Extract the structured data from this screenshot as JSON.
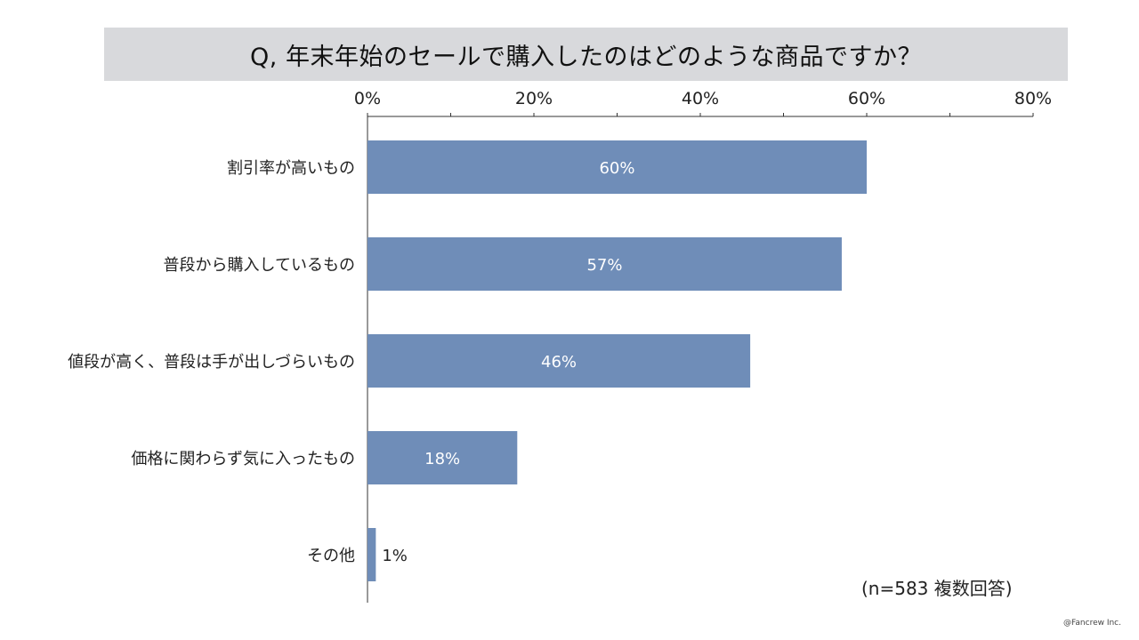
{
  "title": "Q, 年末年始のセールで購入したのはどのような商品ですか？",
  "note": "(n=583 複数回答)",
  "credit": "@Fancrew Inc.",
  "colors": {
    "bar": "#6f8db8",
    "title_bg": "#d8d9dc",
    "axis": "#333333"
  },
  "chart_data": {
    "type": "bar",
    "orientation": "horizontal",
    "categories": [
      "割引率が高いもの",
      "普段から購入しているもの",
      "値段が高く、普段は手が出しづらいもの",
      "価格に関わらず気に入ったもの",
      "その他"
    ],
    "values": [
      60,
      57,
      46,
      18,
      1
    ],
    "value_labels": [
      "60%",
      "57%",
      "46%",
      "18%",
      "1%"
    ],
    "xlim": [
      0,
      80
    ],
    "x_ticks": [
      0,
      20,
      40,
      60,
      80
    ],
    "x_tick_labels": [
      "0%",
      "20%",
      "40%",
      "60%",
      "80%"
    ],
    "axis_position": "top",
    "grid": false,
    "legend": "none"
  }
}
